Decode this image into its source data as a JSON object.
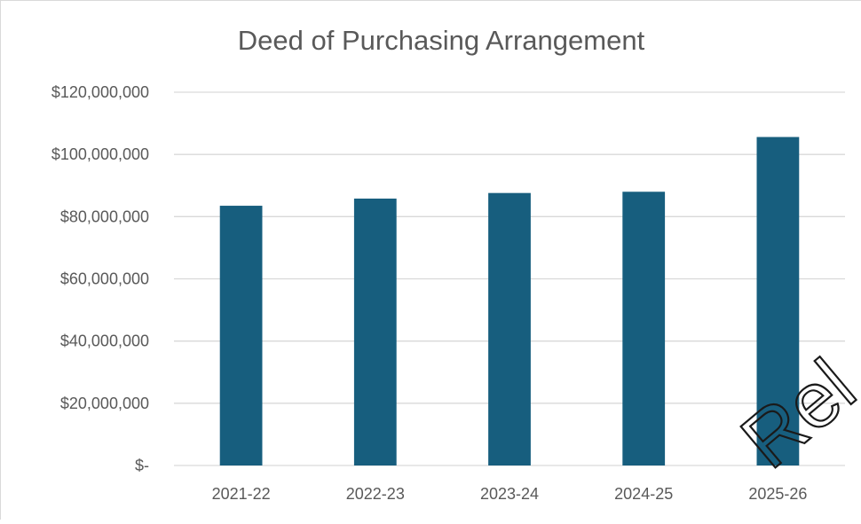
{
  "chart_data": {
    "type": "bar",
    "title": "Deed of Purchasing Arrangement",
    "categories": [
      "2021-22",
      "2022-23",
      "2023-24",
      "2024-25",
      "2025-26"
    ],
    "values": [
      83500000,
      85800000,
      87600000,
      88000000,
      105600000
    ],
    "y_ticks": [
      {
        "value": 0,
        "label": "$-"
      },
      {
        "value": 20000000,
        "label": "$20,000,000"
      },
      {
        "value": 40000000,
        "label": "$40,000,000"
      },
      {
        "value": 60000000,
        "label": "$60,000,000"
      },
      {
        "value": 80000000,
        "label": "$80,000,000"
      },
      {
        "value": 100000000,
        "label": "$100,000,000"
      },
      {
        "value": 120000000,
        "label": "$120,000,000"
      }
    ],
    "ylim": [
      0,
      120000000
    ],
    "xlabel": "",
    "ylabel": "",
    "grid": true,
    "legend": "none",
    "bar_color": "#175E7E",
    "grid_color": "#D9D9D9",
    "text_color": "#595959"
  },
  "watermark": {
    "text": "Rel",
    "color": "#1a1a1a"
  }
}
